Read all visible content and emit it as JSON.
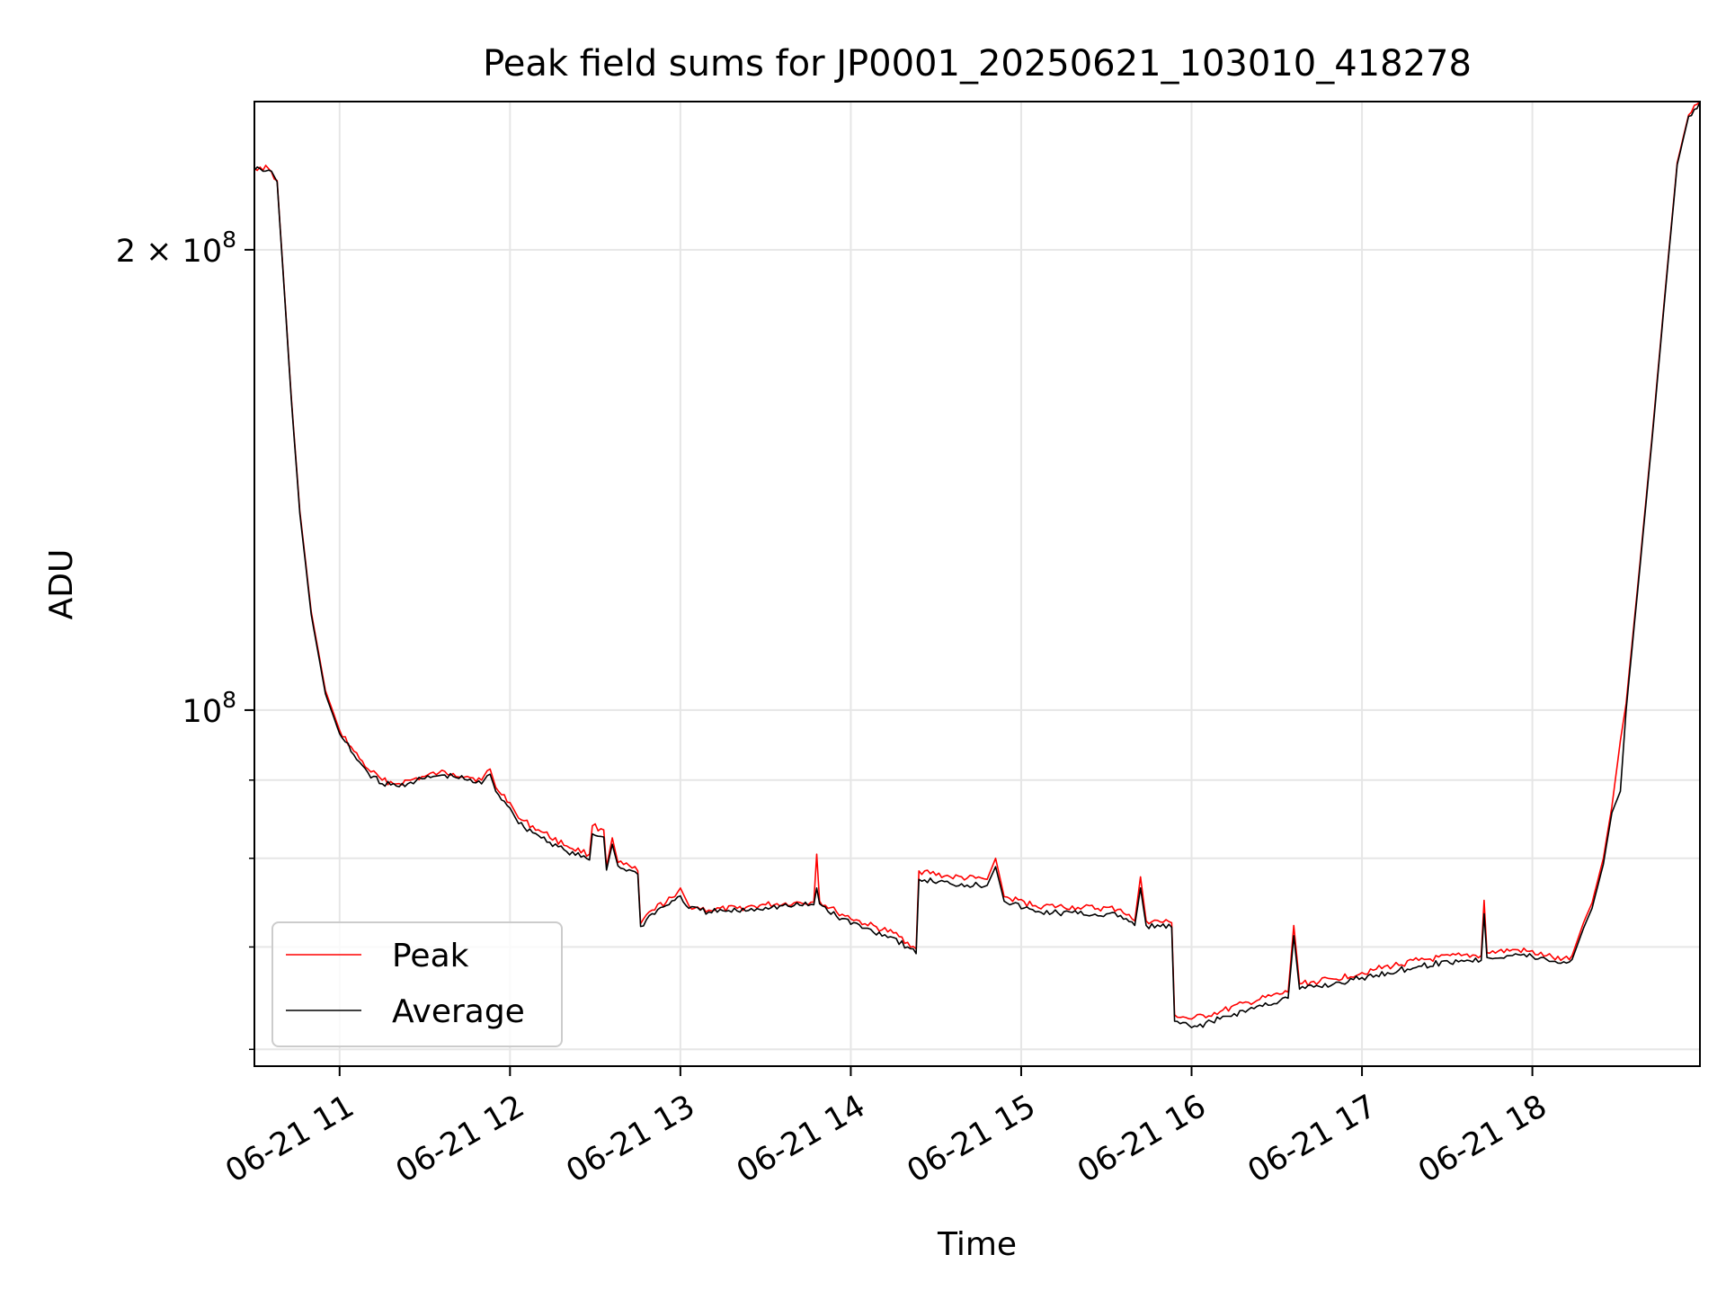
{
  "chart_data": {
    "type": "line",
    "title": "Peak field sums for JP0001_20250621_103010_418278",
    "xlabel": "Time",
    "ylabel": "ADU",
    "yscale": "log",
    "ylim": [
      58500000,
      250000000
    ],
    "xlim": [
      "2025-06-21 10:30",
      "2025-06-21 18:59"
    ],
    "xticks": [
      {
        "value": "2025-06-21 11:00",
        "label": "06-21 11"
      },
      {
        "value": "2025-06-21 12:00",
        "label": "06-21 12"
      },
      {
        "value": "2025-06-21 13:00",
        "label": "06-21 13"
      },
      {
        "value": "2025-06-21 14:00",
        "label": "06-21 14"
      },
      {
        "value": "2025-06-21 15:00",
        "label": "06-21 15"
      },
      {
        "value": "2025-06-21 16:00",
        "label": "06-21 16"
      },
      {
        "value": "2025-06-21 17:00",
        "label": "06-21 17"
      },
      {
        "value": "2025-06-21 18:00",
        "label": "06-21 18"
      }
    ],
    "yticks_major": [
      {
        "value": 200000000,
        "mantissa": "2",
        "times": "×",
        "base": "10",
        "exp": "8"
      },
      {
        "value": 100000000,
        "mantissa": "",
        "times": "",
        "base": "10",
        "exp": "8"
      }
    ],
    "yticks_minor": [
      60000000,
      70000000,
      80000000,
      90000000
    ],
    "grid": true,
    "legend_position": "lower-left",
    "series": [
      {
        "name": "Peak",
        "color": "#ff0000",
        "points": [
          [
            "2025-06-21 10:30",
            226000000
          ],
          [
            "2025-06-21 10:32",
            226500000
          ],
          [
            "2025-06-21 10:35",
            226000000
          ],
          [
            "2025-06-21 10:38",
            222000000
          ],
          [
            "2025-06-21 10:40",
            195000000
          ],
          [
            "2025-06-21 10:43",
            160000000
          ],
          [
            "2025-06-21 10:46",
            135000000
          ],
          [
            "2025-06-21 10:50",
            116000000
          ],
          [
            "2025-06-21 10:55",
            103000000
          ],
          [
            "2025-06-21 11:00",
            97000000
          ],
          [
            "2025-06-21 11:05",
            94000000
          ],
          [
            "2025-06-21 11:10",
            91500000
          ],
          [
            "2025-06-21 11:15",
            90000000
          ],
          [
            "2025-06-21 11:20",
            89500000
          ],
          [
            "2025-06-21 11:25",
            90000000
          ],
          [
            "2025-06-21 11:30",
            90500000
          ],
          [
            "2025-06-21 11:35",
            91000000
          ],
          [
            "2025-06-21 11:40",
            90900000
          ],
          [
            "2025-06-21 11:45",
            90500000
          ],
          [
            "2025-06-21 11:50",
            90000000
          ],
          [
            "2025-06-21 11:53",
            91500000
          ],
          [
            "2025-06-21 11:55",
            89000000
          ],
          [
            "2025-06-21 12:00",
            87000000
          ],
          [
            "2025-06-21 12:03",
            85000000
          ],
          [
            "2025-06-21 12:10",
            83500000
          ],
          [
            "2025-06-21 12:20",
            81500000
          ],
          [
            "2025-06-21 12:28",
            80500000
          ],
          [
            "2025-06-21 12:29",
            84000000
          ],
          [
            "2025-06-21 12:33",
            83500000
          ],
          [
            "2025-06-21 12:34",
            79000000
          ],
          [
            "2025-06-21 12:36",
            82500000
          ],
          [
            "2025-06-21 12:38",
            79500000
          ],
          [
            "2025-06-21 12:45",
            78500000
          ],
          [
            "2025-06-21 12:46",
            72500000
          ],
          [
            "2025-06-21 12:50",
            74000000
          ],
          [
            "2025-06-21 12:58",
            75500000
          ],
          [
            "2025-06-21 13:00",
            76500000
          ],
          [
            "2025-06-21 13:03",
            74500000
          ],
          [
            "2025-06-21 13:10",
            74000000
          ],
          [
            "2025-06-21 13:20",
            74200000
          ],
          [
            "2025-06-21 13:30",
            74600000
          ],
          [
            "2025-06-21 13:40",
            74800000
          ],
          [
            "2025-06-21 13:47",
            74900000
          ],
          [
            "2025-06-21 13:48",
            80500000
          ],
          [
            "2025-06-21 13:49",
            75000000
          ],
          [
            "2025-06-21 13:55",
            73800000
          ],
          [
            "2025-06-21 14:05",
            72500000
          ],
          [
            "2025-06-21 14:15",
            71500000
          ],
          [
            "2025-06-21 14:20",
            70500000
          ],
          [
            "2025-06-21 14:23",
            69800000
          ],
          [
            "2025-06-21 14:24",
            78500000
          ],
          [
            "2025-06-21 14:35",
            77800000
          ],
          [
            "2025-06-21 14:48",
            77500000
          ],
          [
            "2025-06-21 14:51",
            80000000
          ],
          [
            "2025-06-21 14:54",
            75500000
          ],
          [
            "2025-06-21 15:05",
            74500000
          ],
          [
            "2025-06-21 15:20",
            74300000
          ],
          [
            "2025-06-21 15:35",
            74100000
          ],
          [
            "2025-06-21 15:40",
            72800000
          ],
          [
            "2025-06-21 15:42",
            77800000
          ],
          [
            "2025-06-21 15:44",
            72800000
          ],
          [
            "2025-06-21 15:53",
            72600000
          ],
          [
            "2025-06-21 15:54",
            63200000
          ],
          [
            "2025-06-21 16:00",
            62800000
          ],
          [
            "2025-06-21 16:10",
            63500000
          ],
          [
            "2025-06-21 16:20",
            64400000
          ],
          [
            "2025-06-21 16:34",
            65400000
          ],
          [
            "2025-06-21 16:36",
            72300000
          ],
          [
            "2025-06-21 16:38",
            66200000
          ],
          [
            "2025-06-21 16:50",
            66700000
          ],
          [
            "2025-06-21 17:05",
            67700000
          ],
          [
            "2025-06-21 17:20",
            68600000
          ],
          [
            "2025-06-21 17:35",
            69100000
          ],
          [
            "2025-06-21 17:42",
            69100000
          ],
          [
            "2025-06-21 17:43",
            75100000
          ],
          [
            "2025-06-21 17:44",
            69400000
          ],
          [
            "2025-06-21 17:55",
            69700000
          ],
          [
            "2025-06-21 18:05",
            69100000
          ],
          [
            "2025-06-21 18:10",
            68600000
          ],
          [
            "2025-06-21 18:14",
            69100000
          ],
          [
            "2025-06-21 18:18",
            72600000
          ],
          [
            "2025-06-21 18:21",
            74800000
          ],
          [
            "2025-06-21 18:25",
            80000000
          ],
          [
            "2025-06-21 18:28",
            86500000
          ],
          [
            "2025-06-21 18:31",
            95500000
          ],
          [
            "2025-06-21 18:33",
            101000000
          ],
          [
            "2025-06-21 18:37",
            120000000
          ],
          [
            "2025-06-21 18:42",
            150000000
          ],
          [
            "2025-06-21 18:47",
            190000000
          ],
          [
            "2025-06-21 18:51",
            228000000
          ],
          [
            "2025-06-21 18:55",
            245000000
          ],
          [
            "2025-06-21 18:59",
            250000000
          ]
        ]
      },
      {
        "name": "Average",
        "color": "#000000",
        "points": [
          [
            "2025-06-21 10:30",
            225500000
          ],
          [
            "2025-06-21 10:32",
            226000000
          ],
          [
            "2025-06-21 10:35",
            225500000
          ],
          [
            "2025-06-21 10:38",
            221500000
          ],
          [
            "2025-06-21 10:40",
            194500000
          ],
          [
            "2025-06-21 10:43",
            159500000
          ],
          [
            "2025-06-21 10:46",
            134500000
          ],
          [
            "2025-06-21 10:50",
            115500000
          ],
          [
            "2025-06-21 10:55",
            102500000
          ],
          [
            "2025-06-21 11:00",
            96500000
          ],
          [
            "2025-06-21 11:05",
            93500000
          ],
          [
            "2025-06-21 11:10",
            91000000
          ],
          [
            "2025-06-21 11:15",
            89500000
          ],
          [
            "2025-06-21 11:20",
            89200000
          ],
          [
            "2025-06-21 11:25",
            89700000
          ],
          [
            "2025-06-21 11:30",
            90200000
          ],
          [
            "2025-06-21 11:35",
            90600000
          ],
          [
            "2025-06-21 11:40",
            90500000
          ],
          [
            "2025-06-21 11:45",
            90000000
          ],
          [
            "2025-06-21 11:50",
            89500000
          ],
          [
            "2025-06-21 11:53",
            90800000
          ],
          [
            "2025-06-21 11:55",
            88500000
          ],
          [
            "2025-06-21 12:00",
            86300000
          ],
          [
            "2025-06-21 12:03",
            84300000
          ],
          [
            "2025-06-21 12:10",
            82800000
          ],
          [
            "2025-06-21 12:20",
            80800000
          ],
          [
            "2025-06-21 12:28",
            79800000
          ],
          [
            "2025-06-21 12:29",
            83000000
          ],
          [
            "2025-06-21 12:33",
            82600000
          ],
          [
            "2025-06-21 12:34",
            78600000
          ],
          [
            "2025-06-21 12:36",
            81700000
          ],
          [
            "2025-06-21 12:38",
            79100000
          ],
          [
            "2025-06-21 12:45",
            78100000
          ],
          [
            "2025-06-21 12:46",
            72200000
          ],
          [
            "2025-06-21 12:50",
            73600000
          ],
          [
            "2025-06-21 12:58",
            75100000
          ],
          [
            "2025-06-21 13:00",
            75600000
          ],
          [
            "2025-06-21 13:03",
            74200000
          ],
          [
            "2025-06-21 13:10",
            73800000
          ],
          [
            "2025-06-21 13:20",
            73900000
          ],
          [
            "2025-06-21 13:30",
            74300000
          ],
          [
            "2025-06-21 13:40",
            74500000
          ],
          [
            "2025-06-21 13:47",
            74600000
          ],
          [
            "2025-06-21 13:48",
            76500000
          ],
          [
            "2025-06-21 13:49",
            74700000
          ],
          [
            "2025-06-21 13:55",
            73300000
          ],
          [
            "2025-06-21 14:05",
            72000000
          ],
          [
            "2025-06-21 14:15",
            71000000
          ],
          [
            "2025-06-21 14:20",
            70000000
          ],
          [
            "2025-06-21 14:23",
            69300000
          ],
          [
            "2025-06-21 14:24",
            77500000
          ],
          [
            "2025-06-21 14:35",
            77000000
          ],
          [
            "2025-06-21 14:48",
            76800000
          ],
          [
            "2025-06-21 14:51",
            79000000
          ],
          [
            "2025-06-21 14:54",
            75000000
          ],
          [
            "2025-06-21 15:05",
            73800000
          ],
          [
            "2025-06-21 15:20",
            73600000
          ],
          [
            "2025-06-21 15:35",
            73400000
          ],
          [
            "2025-06-21 15:40",
            72300000
          ],
          [
            "2025-06-21 15:42",
            76500000
          ],
          [
            "2025-06-21 15:44",
            72300000
          ],
          [
            "2025-06-21 15:53",
            72100000
          ],
          [
            "2025-06-21 15:54",
            62600000
          ],
          [
            "2025-06-21 16:00",
            62000000
          ],
          [
            "2025-06-21 16:10",
            62800000
          ],
          [
            "2025-06-21 16:20",
            63700000
          ],
          [
            "2025-06-21 16:34",
            64800000
          ],
          [
            "2025-06-21 16:36",
            71200000
          ],
          [
            "2025-06-21 16:38",
            65700000
          ],
          [
            "2025-06-21 16:50",
            66200000
          ],
          [
            "2025-06-21 17:05",
            67100000
          ],
          [
            "2025-06-21 17:20",
            68000000
          ],
          [
            "2025-06-21 17:35",
            68600000
          ],
          [
            "2025-06-21 17:42",
            68600000
          ],
          [
            "2025-06-21 17:43",
            73600000
          ],
          [
            "2025-06-21 17:44",
            68900000
          ],
          [
            "2025-06-21 17:55",
            69200000
          ],
          [
            "2025-06-21 18:05",
            68700000
          ],
          [
            "2025-06-21 18:10",
            68300000
          ],
          [
            "2025-06-21 18:14",
            68700000
          ],
          [
            "2025-06-21 18:18",
            72000000
          ],
          [
            "2025-06-21 18:21",
            74200000
          ],
          [
            "2025-06-21 18:25",
            79300000
          ],
          [
            "2025-06-21 18:28",
            85700000
          ],
          [
            "2025-06-21 18:31",
            88500000
          ],
          [
            "2025-06-21 18:33",
            100000000
          ],
          [
            "2025-06-21 18:37",
            119300000
          ],
          [
            "2025-06-21 18:42",
            149300000
          ],
          [
            "2025-06-21 18:47",
            189300000
          ],
          [
            "2025-06-21 18:51",
            227300000
          ],
          [
            "2025-06-21 18:55",
            244500000
          ],
          [
            "2025-06-21 18:59",
            249800000
          ]
        ]
      }
    ]
  }
}
